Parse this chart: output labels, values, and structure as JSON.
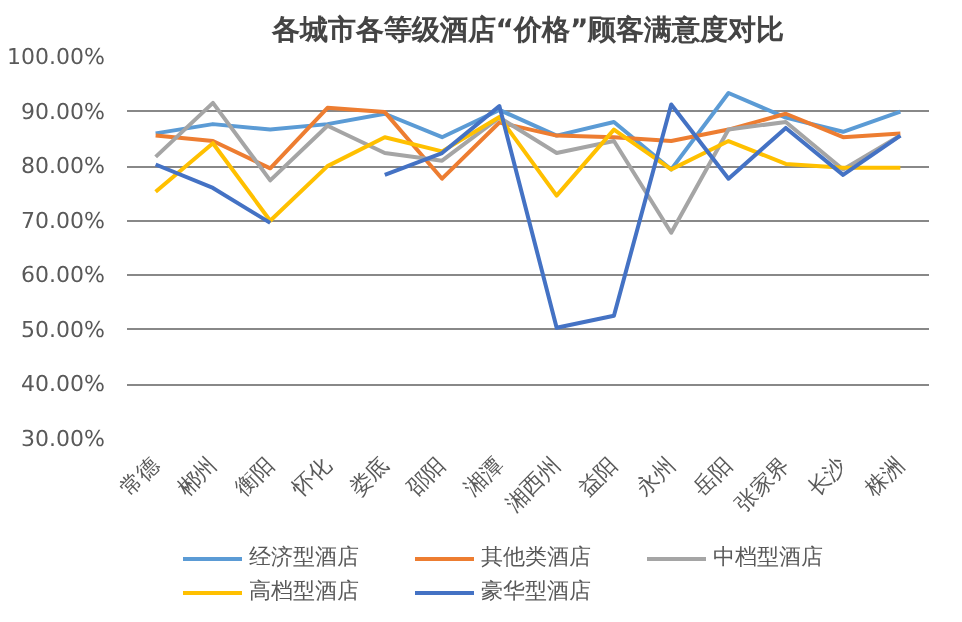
{
  "chart_data": {
    "type": "line",
    "title": "各城市各等级酒店“价格”顾客满意度对比",
    "categories": [
      "常德",
      "郴州",
      "衡阳",
      "怀化",
      "娄底",
      "邵阳",
      "湘潭",
      "湘西州",
      "益阳",
      "永州",
      "岳阳",
      "张家界",
      "长沙",
      "株洲"
    ],
    "series": [
      {
        "name": "经济型酒店",
        "color": "#5b9bd5",
        "values": [
          86,
          87.7,
          86.7,
          87.7,
          89.6,
          85.3,
          90.3,
          85.6,
          88.1,
          79.4,
          93.4,
          88.9,
          86.3,
          90
        ]
      },
      {
        "name": "其他类酒店",
        "color": "#ed7d31",
        "values": [
          85.6,
          84.6,
          79.6,
          90.7,
          89.9,
          77.7,
          88,
          85.6,
          85.3,
          84.6,
          86.7,
          89.6,
          85.3,
          86
        ]
      },
      {
        "name": "中档型酒店",
        "color": "#a5a5a5",
        "values": [
          81.7,
          91.6,
          77.4,
          87.4,
          82.4,
          81,
          88.9,
          82.4,
          84.6,
          67.8,
          86.7,
          88.1,
          79.4,
          85.6
        ]
      },
      {
        "name": "高档型酒店",
        "color": "#ffc000",
        "values": [
          75.3,
          84.2,
          70,
          80,
          85.3,
          82.7,
          89,
          74.6,
          86.7,
          79.4,
          84.6,
          80.4,
          79.7,
          79.7
        ]
      },
      {
        "name": "豪华型酒店",
        "color": "#4472c4",
        "values": [
          80.3,
          76,
          69.6,
          null,
          78.4,
          82.4,
          91,
          50.4,
          52.6,
          91.3,
          77.7,
          87,
          78.4,
          85.6
        ]
      }
    ],
    "ylim": [
      30,
      100
    ],
    "yticks": [
      {
        "value": 30,
        "label": "30.00%"
      },
      {
        "value": 40,
        "label": "40.00%"
      },
      {
        "value": 50,
        "label": "50.00%"
      },
      {
        "value": 60,
        "label": "60.00%"
      },
      {
        "value": 70,
        "label": "70.00%"
      },
      {
        "value": 80,
        "label": "80.00%"
      },
      {
        "value": 90,
        "label": "90.00%"
      },
      {
        "value": 100,
        "label": "100.00%"
      }
    ],
    "grid": "y",
    "legend": "bottom",
    "marker": "none",
    "line_style": "solid"
  }
}
